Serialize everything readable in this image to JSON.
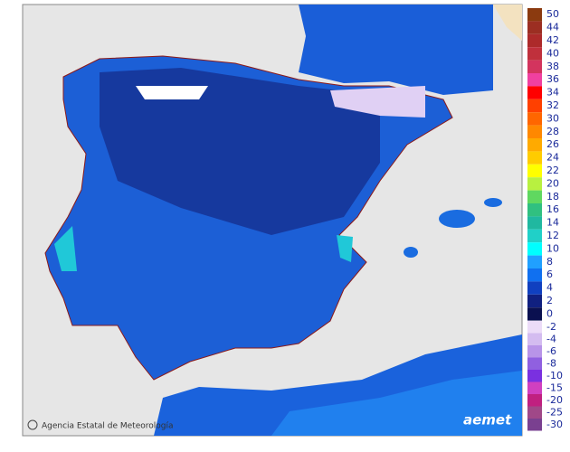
{
  "credit": "Agencia Estatal de Meteorología",
  "logo": "aemet",
  "legend": {
    "upper": [
      {
        "label": "50",
        "color": "#8b3a0f"
      },
      {
        "label": "44",
        "color": "#9c2e22"
      },
      {
        "label": "42",
        "color": "#ad2a2a"
      },
      {
        "label": "40",
        "color": "#c0303c"
      },
      {
        "label": "38",
        "color": "#d3345e"
      },
      {
        "label": "36",
        "color": "#f040a0"
      },
      {
        "label": "34",
        "color": "#ff0000"
      },
      {
        "label": "32",
        "color": "#ff4000"
      },
      {
        "label": "30",
        "color": "#ff6600"
      },
      {
        "label": "28",
        "color": "#ff8800"
      },
      {
        "label": "26",
        "color": "#ffaa00"
      },
      {
        "label": "24",
        "color": "#ffcc00"
      },
      {
        "label": "22",
        "color": "#ffff00"
      },
      {
        "label": "20",
        "color": "#b8f040"
      },
      {
        "label": "18",
        "color": "#60d860"
      },
      {
        "label": "16",
        "color": "#30c080"
      },
      {
        "label": "14",
        "color": "#20b8a0"
      },
      {
        "label": "12",
        "color": "#20d0c8"
      },
      {
        "label": "10",
        "color": "#00ffff"
      },
      {
        "label": "8",
        "color": "#20a0ff"
      },
      {
        "label": "6",
        "color": "#1070f0"
      },
      {
        "label": "4",
        "color": "#1040c0"
      },
      {
        "label": "2",
        "color": "#102080"
      },
      {
        "label": "0",
        "color": "#0a1050"
      }
    ],
    "lower": [
      {
        "label": "-2",
        "color": "#ecdcf8"
      },
      {
        "label": "-4",
        "color": "#d4bcf0"
      },
      {
        "label": "-6",
        "color": "#b894e8"
      },
      {
        "label": "-8",
        "color": "#9060e0"
      },
      {
        "label": "-10",
        "color": "#7a30e0"
      },
      {
        "label": "-15",
        "color": "#d040c0"
      },
      {
        "label": "-20",
        "color": "#c02080"
      },
      {
        "label": "-25",
        "color": "#a04888"
      },
      {
        "label": "-30",
        "color": "#7a4090"
      }
    ]
  }
}
